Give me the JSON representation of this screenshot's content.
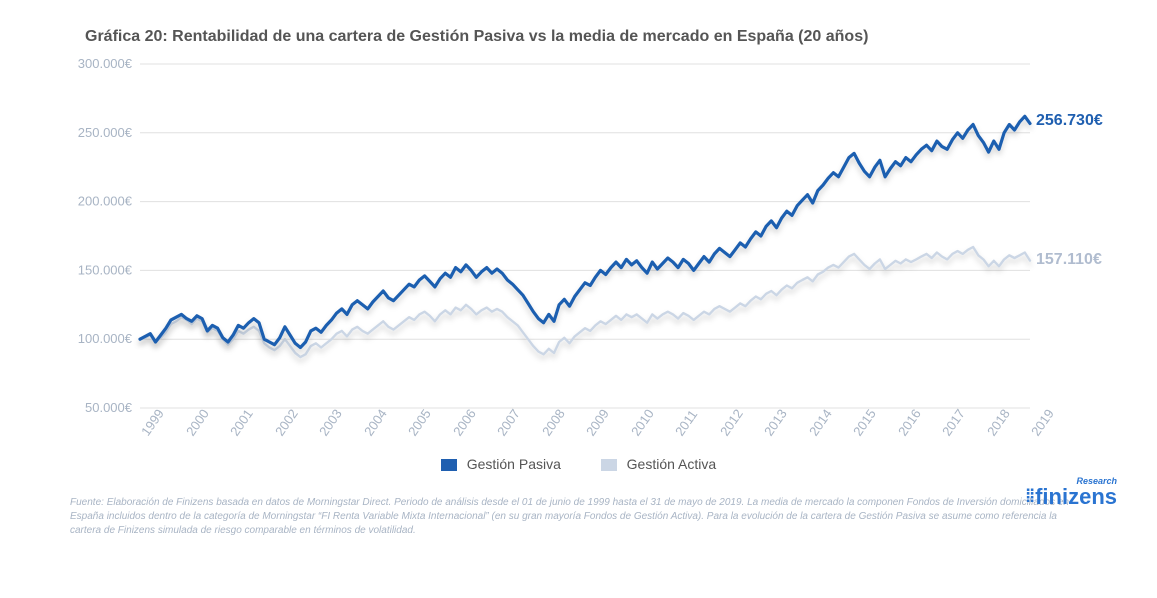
{
  "chart": {
    "type": "line",
    "title": "Gráfica 20: Rentabilidad de una cartera de Gestión Pasiva vs la media de mercado en España (20 años)",
    "title_color": "#555555",
    "title_fontsize": 16,
    "background_color": "#ffffff",
    "grid_color": "#e0e0e0",
    "tick_color": "#a8b4c4",
    "tick_fontsize": 13,
    "y_axis": {
      "min": 50000,
      "max": 300000,
      "tick_step": 50000,
      "ticks_labels": [
        "50.000€",
        "100.000€",
        "150.000€",
        "200.000€",
        "250.000€",
        "300.000€"
      ]
    },
    "x_axis": {
      "labels": [
        "1999",
        "2000",
        "2001",
        "2002",
        "2003",
        "2004",
        "2005",
        "2006",
        "2007",
        "2008",
        "2009",
        "2010",
        "2011",
        "2012",
        "2013",
        "2014",
        "2015",
        "2016",
        "2017",
        "2018",
        "2019"
      ],
      "label_rotation_deg": -55
    },
    "series": {
      "pasiva": {
        "label": "Gestión Pasiva",
        "color": "#1f5fb0",
        "line_width": 3.2,
        "end_label": "256.730€",
        "end_label_color": "#1f5fb0",
        "values": [
          100000,
          102000,
          104000,
          98000,
          103000,
          108000,
          114000,
          116000,
          118000,
          115000,
          113000,
          117000,
          115000,
          106000,
          110000,
          108000,
          101000,
          98000,
          103000,
          110000,
          108000,
          112000,
          115000,
          112000,
          100000,
          98000,
          96000,
          101000,
          109000,
          103000,
          97000,
          94000,
          98000,
          106000,
          108000,
          105000,
          110000,
          114000,
          119000,
          122000,
          118000,
          125000,
          128000,
          125000,
          122000,
          127000,
          131000,
          135000,
          130000,
          128000,
          132000,
          136000,
          140000,
          138000,
          143000,
          146000,
          142000,
          138000,
          144000,
          148000,
          145000,
          152000,
          149000,
          154000,
          150000,
          145000,
          149000,
          152000,
          148000,
          151000,
          148000,
          143000,
          140000,
          136000,
          132000,
          126000,
          120000,
          115000,
          112000,
          118000,
          113000,
          125000,
          129000,
          124000,
          131000,
          136000,
          141000,
          139000,
          145000,
          150000,
          147000,
          152000,
          156000,
          152000,
          158000,
          154000,
          157000,
          152000,
          148000,
          156000,
          151000,
          155000,
          159000,
          156000,
          152000,
          158000,
          155000,
          150000,
          155000,
          160000,
          156000,
          162000,
          166000,
          163000,
          160000,
          165000,
          170000,
          167000,
          173000,
          178000,
          175000,
          182000,
          186000,
          181000,
          188000,
          193000,
          190000,
          197000,
          201000,
          205000,
          199000,
          208000,
          212000,
          217000,
          221000,
          218000,
          225000,
          232000,
          235000,
          228000,
          222000,
          218000,
          225000,
          230000,
          218000,
          224000,
          229000,
          226000,
          232000,
          229000,
          234000,
          238000,
          241000,
          237000,
          244000,
          240000,
          238000,
          245000,
          250000,
          246000,
          252000,
          256000,
          248000,
          243000,
          236000,
          244000,
          238000,
          250000,
          256000,
          252000,
          258000,
          262000,
          256730
        ]
      },
      "activa": {
        "label": "Gestión Activa",
        "color": "#cbd6e5",
        "line_width": 2.4,
        "end_label": "157.110€",
        "end_label_color": "#b0bccf",
        "values": [
          100000,
          101000,
          103000,
          98000,
          101000,
          105000,
          111000,
          113000,
          116000,
          114000,
          111000,
          115000,
          113000,
          105000,
          108000,
          106000,
          100000,
          96000,
          100000,
          106000,
          104000,
          107000,
          109000,
          106000,
          97000,
          94000,
          92000,
          95000,
          100000,
          95000,
          90000,
          87000,
          89000,
          95000,
          97000,
          94000,
          97000,
          100000,
          104000,
          106000,
          102000,
          107000,
          109000,
          106000,
          104000,
          107000,
          110000,
          113000,
          109000,
          107000,
          110000,
          113000,
          116000,
          114000,
          118000,
          120000,
          117000,
          113000,
          118000,
          121000,
          118000,
          123000,
          121000,
          125000,
          122000,
          118000,
          121000,
          123000,
          120000,
          122000,
          120000,
          116000,
          113000,
          110000,
          105000,
          100000,
          95000,
          91000,
          89000,
          93000,
          90000,
          98000,
          101000,
          97000,
          102000,
          105000,
          108000,
          106000,
          110000,
          113000,
          111000,
          114000,
          117000,
          114000,
          118000,
          116000,
          118000,
          115000,
          112000,
          118000,
          115000,
          118000,
          120000,
          118000,
          115000,
          119000,
          117000,
          114000,
          117000,
          120000,
          118000,
          122000,
          124000,
          122000,
          120000,
          123000,
          126000,
          124000,
          128000,
          131000,
          129000,
          133000,
          135000,
          132000,
          136000,
          139000,
          137000,
          141000,
          143000,
          145000,
          142000,
          147000,
          149000,
          152000,
          154000,
          152000,
          156000,
          160000,
          162000,
          158000,
          154000,
          151000,
          155000,
          158000,
          151000,
          154000,
          157000,
          155000,
          158000,
          156000,
          158000,
          160000,
          162000,
          159000,
          163000,
          160000,
          158000,
          162000,
          164000,
          162000,
          165000,
          167000,
          161000,
          158000,
          153000,
          157000,
          153000,
          158000,
          161000,
          159000,
          161000,
          163000,
          157110
        ]
      }
    }
  },
  "legend": {
    "items": [
      {
        "swatch_color": "#1f5fb0",
        "label": "Gestión Pasiva"
      },
      {
        "swatch_color": "#cbd6e5",
        "label": "Gestión Activa"
      }
    ]
  },
  "brand": {
    "name": "finizens",
    "sup": "Research",
    "color": "#2a74d1"
  },
  "footer": {
    "text": "Fuente: Elaboración de Finizens basada en datos de Morningstar Direct. Periodo de análisis desde el 01 de junio de 1999 hasta el 31 de mayo de 2019. La media de mercado la componen Fondos de Inversión domiciliados en España incluidos dentro de la categoría de Morningstar “FI Renta Variable Mixta Internacional” (en su gran mayoría Fondos de Gestión Activa). Para la evolución de la cartera de Gestión Pasiva se asume como referencia la cartera de Finizens simulada de riesgo comparable en términos de volatilidad.",
    "color": "#a8b4c4",
    "fontsize": 10
  }
}
